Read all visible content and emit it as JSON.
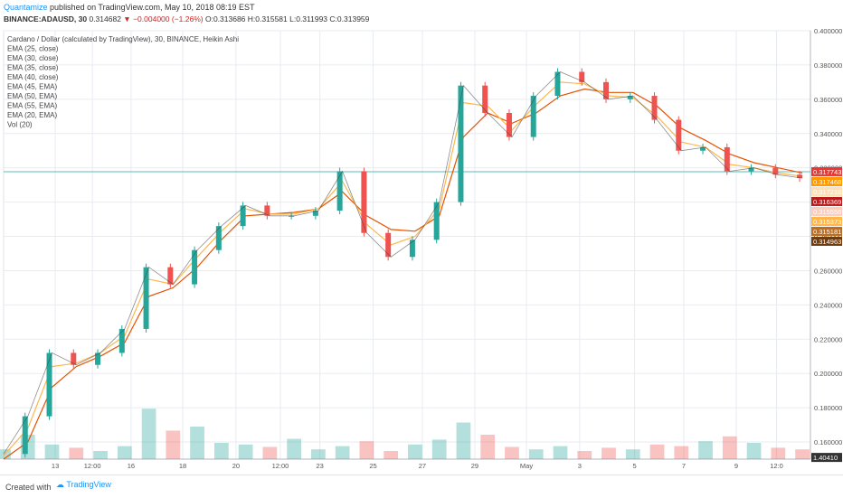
{
  "header": {
    "author": "Quantamize",
    "published": "published on TradingView.com, May 10, 2018 08:19 EST",
    "symbol": "BINANCE:ADAUSD, 30",
    "last": "0.314682",
    "change": "−0.004000 (−1.26%)",
    "ohlc_o": "O:0.313686",
    "ohlc_h": "H:0.315581",
    "ohlc_l": "L:0.311993",
    "ohlc_c": "C:0.313959"
  },
  "footer": {
    "created_with": "Created with",
    "brand": "TradingView"
  },
  "colors": {
    "up": "#26a69a",
    "down": "#ef5350",
    "grid": "#e8ebf2",
    "price_line": "#26a69a"
  },
  "chart_data": {
    "type": "line",
    "legend": [
      "Cardano / Dollar (calculated by TradingView), 30, BINANCE, Heikin Ashi",
      "EMA (25, close)",
      "EMA (30, close)",
      "EMA (35, close)",
      "EMA (40, close)",
      "EMA (45, EMA)",
      "EMA (50, EMA)",
      "EMA (55, EMA)",
      "EMA (20, EMA)",
      "Vol (20)"
    ],
    "ylim": [
      0.15,
      0.4
    ],
    "yticks": [
      0.16,
      0.18,
      0.2,
      0.22,
      0.24,
      0.26,
      0.28,
      0.3,
      0.32,
      0.34,
      0.36,
      0.38,
      0.4
    ],
    "ytick_labels": [
      "0.160000",
      "0.180000",
      "0.200000",
      "0.220000",
      "0.240000",
      "0.260000",
      "0.280000",
      "0.300000",
      "0.320000",
      "0.340000",
      "0.360000",
      "0.380000",
      "0.400000"
    ],
    "xlabels": [
      "13",
      "12:00",
      "16",
      "18",
      "20",
      "12:00",
      "23",
      "25",
      "27",
      "29",
      "May",
      "3",
      "5",
      "7",
      "9",
      "12:0"
    ],
    "xlabel_pos": [
      0.064,
      0.11,
      0.158,
      0.222,
      0.288,
      0.343,
      0.392,
      0.458,
      0.519,
      0.584,
      0.648,
      0.714,
      0.782,
      0.843,
      0.908,
      0.958
    ],
    "x": [
      0,
      0.03,
      0.06,
      0.09,
      0.12,
      0.15,
      0.18,
      0.21,
      0.24,
      0.27,
      0.3,
      0.33,
      0.36,
      0.39,
      0.42,
      0.45,
      0.48,
      0.51,
      0.54,
      0.57,
      0.6,
      0.63,
      0.66,
      0.69,
      0.72,
      0.75,
      0.78,
      0.81,
      0.84,
      0.87,
      0.9,
      0.93,
      0.96,
      0.99
    ],
    "price": [
      0.153,
      0.175,
      0.212,
      0.205,
      0.212,
      0.226,
      0.262,
      0.252,
      0.272,
      0.286,
      0.298,
      0.292,
      0.292,
      0.295,
      0.318,
      0.282,
      0.268,
      0.278,
      0.3,
      0.368,
      0.352,
      0.338,
      0.362,
      0.376,
      0.37,
      0.36,
      0.362,
      0.348,
      0.33,
      0.332,
      0.318,
      0.32,
      0.316,
      0.314
    ],
    "ema_fast": [
      0.152,
      0.168,
      0.204,
      0.206,
      0.212,
      0.222,
      0.255,
      0.252,
      0.268,
      0.283,
      0.296,
      0.293,
      0.293,
      0.296,
      0.312,
      0.287,
      0.275,
      0.28,
      0.296,
      0.358,
      0.356,
      0.342,
      0.357,
      0.37,
      0.369,
      0.362,
      0.361,
      0.35,
      0.335,
      0.332,
      0.322,
      0.32,
      0.317,
      0.315
    ],
    "ema_slow": [
      0.15,
      0.16,
      0.192,
      0.204,
      0.21,
      0.218,
      0.245,
      0.25,
      0.262,
      0.278,
      0.292,
      0.293,
      0.294,
      0.296,
      0.306,
      0.292,
      0.284,
      0.283,
      0.292,
      0.338,
      0.352,
      0.346,
      0.352,
      0.362,
      0.366,
      0.364,
      0.364,
      0.356,
      0.343,
      0.336,
      0.328,
      0.323,
      0.32,
      0.317
    ],
    "volume": [
      0.12,
      0.3,
      0.18,
      0.14,
      0.1,
      0.16,
      0.62,
      0.35,
      0.4,
      0.2,
      0.18,
      0.15,
      0.25,
      0.12,
      0.16,
      0.22,
      0.1,
      0.18,
      0.24,
      0.45,
      0.3,
      0.15,
      0.12,
      0.16,
      0.1,
      0.14,
      0.12,
      0.18,
      0.16,
      0.22,
      0.28,
      0.2,
      0.14,
      0.12
    ],
    "price_labels": [
      {
        "value": "0.317743",
        "color": "#e53935",
        "v": 0.31774
      },
      {
        "value": "0.317468",
        "color": "#ff9800",
        "v": 0.31747
      },
      {
        "value": "0.317216",
        "color": "#ffe0b2",
        "v": 0.31722,
        "text": "#333"
      },
      {
        "value": "0.316369",
        "color": "#b71c1c",
        "v": 0.31637
      },
      {
        "value": "0.315556",
        "color": "#ffccbc",
        "v": 0.31556,
        "text": "#333"
      },
      {
        "value": "0.315373",
        "color": "#ffb74d",
        "v": 0.31537
      },
      {
        "value": "0.315181",
        "color": "#bf6c1c",
        "v": 0.31518
      },
      {
        "value": "0.314963",
        "color": "#6d3c10",
        "v": 0.31496
      },
      {
        "value": "1.40410",
        "color": "#333",
        "v": 0.151
      }
    ],
    "grid": true
  }
}
